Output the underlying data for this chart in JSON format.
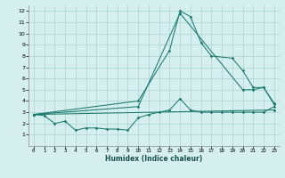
{
  "xlabel": "Humidex (Indice chaleur)",
  "bg_color": "#d5efee",
  "grid_color": "#b2d8d8",
  "line_color": "#1a7a6e",
  "xlim": [
    -0.5,
    23.5
  ],
  "ylim": [
    0,
    12.5
  ],
  "xticks": [
    0,
    1,
    2,
    3,
    4,
    5,
    6,
    7,
    8,
    9,
    10,
    11,
    12,
    13,
    14,
    15,
    16,
    17,
    18,
    19,
    20,
    21,
    22,
    23
  ],
  "yticks": [
    1,
    2,
    3,
    4,
    5,
    6,
    7,
    8,
    9,
    10,
    11,
    12
  ],
  "series1_x": [
    0,
    1,
    2,
    3,
    4,
    5,
    6,
    7,
    8,
    9,
    10,
    11,
    12,
    13,
    14,
    15,
    16,
    17,
    18,
    19,
    20,
    21,
    22,
    23
  ],
  "series1_y": [
    2.8,
    2.7,
    2.0,
    2.2,
    1.4,
    1.6,
    1.6,
    1.5,
    1.5,
    1.4,
    2.5,
    2.8,
    3.0,
    3.2,
    4.2,
    3.2,
    3.0,
    3.0,
    3.0,
    3.0,
    3.0,
    3.0,
    3.0,
    3.5
  ],
  "series2_x": [
    0,
    10,
    13,
    14,
    15,
    16,
    17,
    19,
    20,
    21,
    22,
    23
  ],
  "series2_y": [
    2.8,
    4.0,
    8.5,
    12.0,
    11.5,
    9.2,
    8.0,
    7.8,
    6.7,
    5.2,
    5.2,
    3.8
  ],
  "series3_x": [
    0,
    10,
    14,
    20,
    21,
    22,
    23
  ],
  "series3_y": [
    2.8,
    3.5,
    11.8,
    5.0,
    5.0,
    5.2,
    3.7
  ],
  "series4_x": [
    0,
    23
  ],
  "series4_y": [
    2.8,
    3.2
  ]
}
